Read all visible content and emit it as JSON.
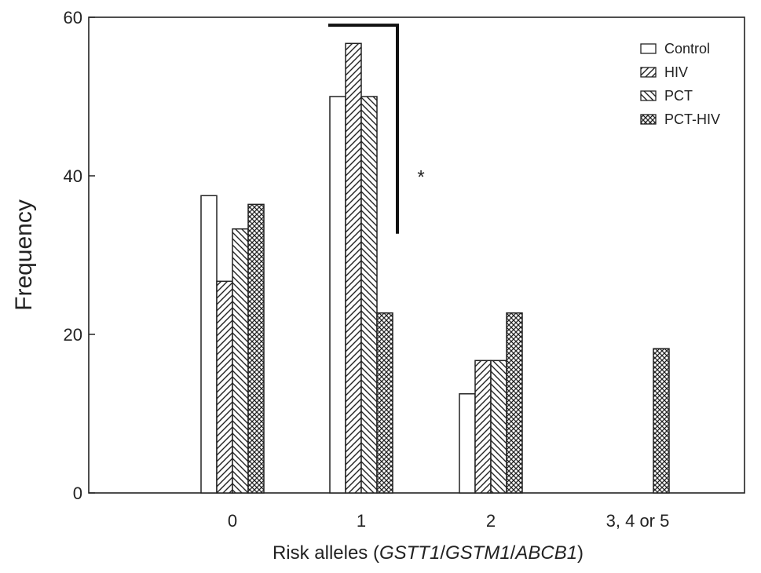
{
  "chart_data": {
    "type": "bar",
    "title": "",
    "ylabel": "Frequency",
    "xlabel_parts": [
      {
        "text": "Risk alleles (",
        "italic": false
      },
      {
        "text": "GSTT1",
        "italic": true
      },
      {
        "text": "/",
        "italic": false
      },
      {
        "text": "GSTM1",
        "italic": true
      },
      {
        "text": "/",
        "italic": false
      },
      {
        "text": "ABCB1",
        "italic": true
      },
      {
        "text": ")",
        "italic": false
      }
    ],
    "categories": [
      "0",
      "1",
      "2",
      "3, 4 or 5"
    ],
    "ylim": [
      0,
      60
    ],
    "yticks": [
      "0",
      "20",
      "40",
      "60"
    ],
    "grid": false,
    "legend_position": "top-right",
    "series": [
      {
        "name": "Control",
        "pattern": "none",
        "values": [
          37.5,
          50,
          12.5,
          0
        ]
      },
      {
        "name": "HIV",
        "pattern": "diag-right",
        "values": [
          26.7,
          56.7,
          16.7,
          0
        ]
      },
      {
        "name": "PCT",
        "pattern": "diag-left",
        "values": [
          33.3,
          50,
          16.7,
          0
        ]
      },
      {
        "name": "PCT-HIV",
        "pattern": "crosshatch",
        "values": [
          36.4,
          22.7,
          22.7,
          18.2
        ]
      }
    ],
    "annotations": [
      {
        "text": "*",
        "category": "1",
        "from_series": "Control",
        "to_series": "PCT-HIV",
        "y": 59
      }
    ]
  }
}
